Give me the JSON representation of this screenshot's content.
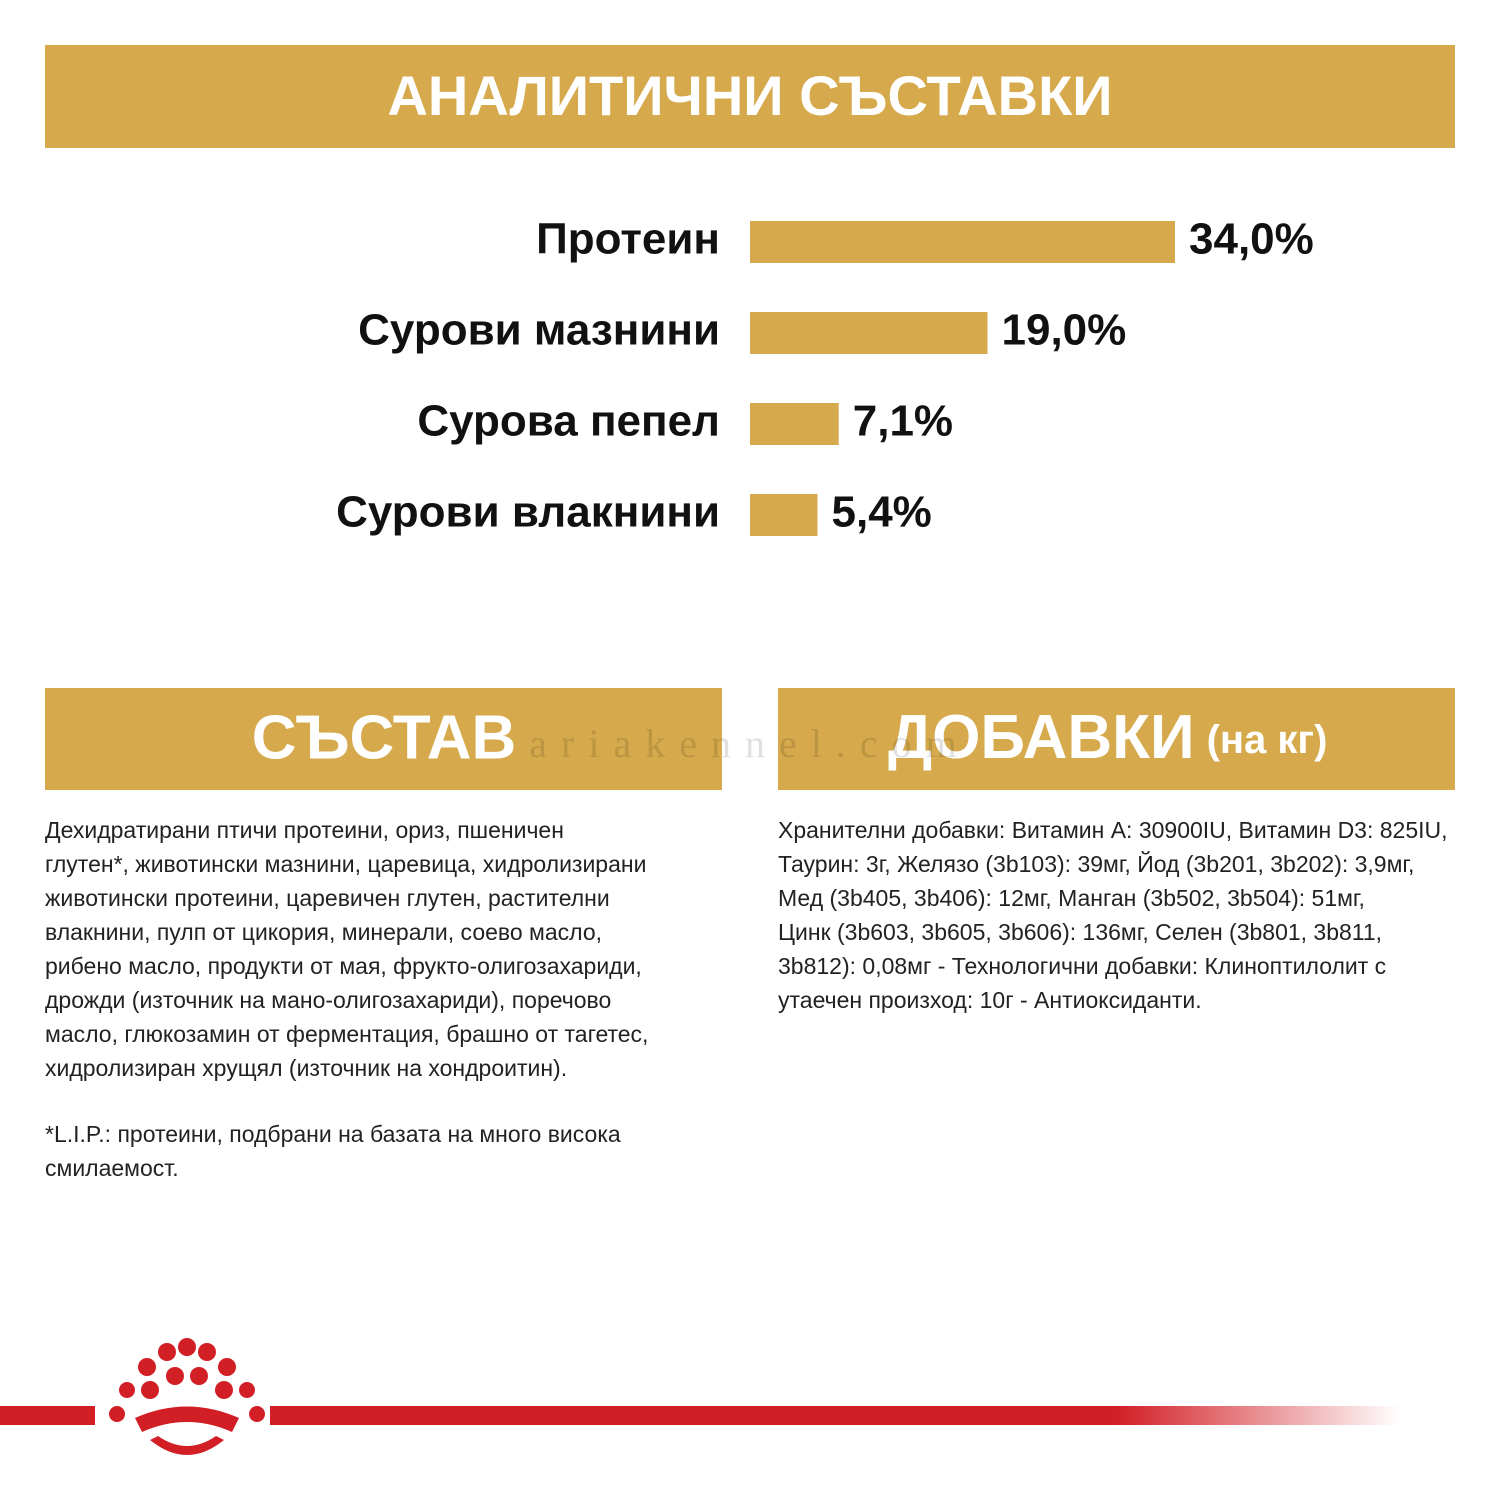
{
  "header": {
    "title": "АНАЛИТИЧНИ СЪСТАВКИ"
  },
  "chart_data": {
    "type": "bar",
    "orientation": "horizontal",
    "categories": [
      "Протеин",
      "Сурови мазнини",
      "Сурова пепел",
      "Сурови влакнини"
    ],
    "values": [
      34.0,
      19.0,
      7.1,
      5.4
    ],
    "value_labels": [
      "34,0%",
      "19,0%",
      "7,1%",
      "5,4%"
    ],
    "color": "#d6aa4c"
  },
  "composition": {
    "title": "СЪСТАВ",
    "lines": [
      "Дехидратирани птичи протеини, ориз, пшеничен",
      "глутен*, животински мазнини, царевица, хидролизирани",
      "животински протеини, царевичен глутен, растителни",
      "влакнини, пулп от цикория, минерали, соево масло,",
      "рибено масло, продукти от мая, фрукто-олигозахариди,",
      "дрожди (източник на мано-олигозахариди), поречово",
      "масло, глюкозамин от ферментация, брашно от тагетес,",
      "хидролизиран хрущял (източник на хондроитин)."
    ],
    "footnote_lines": [
      "*L.I.P.: протеини, подбрани на базата на много висока",
      "смилаемост."
    ]
  },
  "additives": {
    "title": "ДОБАВКИ",
    "unit": "(на кг)",
    "lines": [
      "Хранителни добавки: Витамин A: 30900IU, Витамин D3: 825IU,",
      "Таурин: 3г, Желязо (3b103): 39мг, Йод (3b201, 3b202): 3,9мг,",
      "Мед (3b405, 3b406): 12мг, Манган (3b502, 3b504): 51мг,",
      "Цинк (3b603, 3b605, 3b606): 136мг, Селен (3b801, 3b811,",
      "3b812): 0,08мг - Технологични добавки: Клиноптилолит с",
      "утаечен произход: 10г - Антиоксиданти."
    ]
  },
  "watermark": "ariakennel.com"
}
